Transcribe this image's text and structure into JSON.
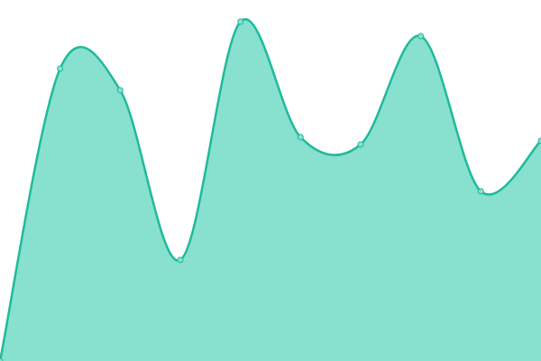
{
  "chart_data": {
    "type": "area",
    "categories": [
      null,
      null,
      null,
      null,
      null,
      null,
      null,
      null,
      null,
      null
    ],
    "series": [
      {
        "color": "#1fba9b",
        "fill": "#88e0cf",
        "values": [
          0,
          81,
          75,
          28,
          94,
          62,
          60,
          90,
          47,
          61
        ]
      }
    ],
    "ylim": [
      0,
      100
    ],
    "grid": false
  }
}
